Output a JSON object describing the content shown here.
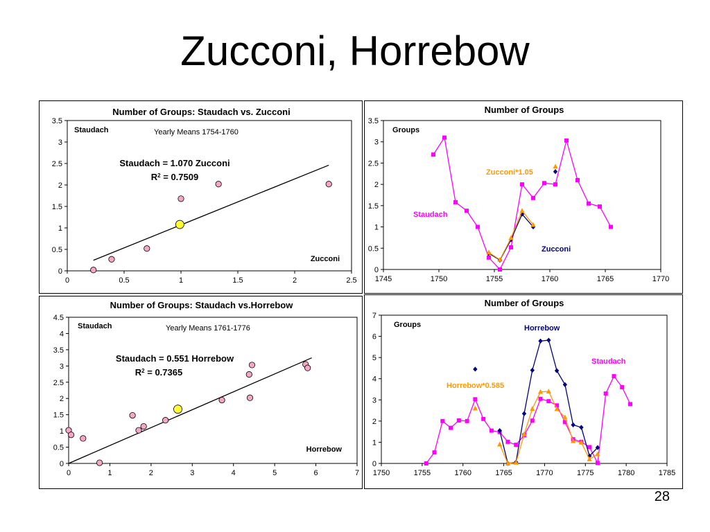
{
  "slide": {
    "title": "Zucconi, Horrebow",
    "page_number": "28"
  },
  "chart_data": [
    {
      "type": "scatter",
      "title": "Number of Groups: Staudach vs. Zucconi",
      "xlim": [
        0,
        2.5
      ],
      "xticks": [
        0,
        0.5,
        1,
        1.5,
        2,
        2.5
      ],
      "xtick_labels": [
        "0",
        "0.5",
        "1",
        "1.5",
        "2",
        "2.5"
      ],
      "ylim": [
        0,
        3.5
      ],
      "yticks": [
        0,
        0.5,
        1,
        1.5,
        2,
        2.5,
        3,
        3.5
      ],
      "ytick_labels": [
        "0",
        "0.5",
        "1",
        "1.5",
        "2",
        "2.5",
        "3",
        "3.5"
      ],
      "grid": false,
      "series": [
        {
          "marker": "circle",
          "color": "#f4a6c6",
          "points": [
            [
              0.23,
              0.02
            ],
            [
              0.39,
              0.27
            ],
            [
              0.7,
              0.52
            ],
            [
              1.0,
              1.68
            ],
            [
              1.33,
              2.02
            ],
            [
              2.3,
              2.02
            ]
          ]
        },
        {
          "marker": "circle",
          "color": "#ffff33",
          "points": [
            [
              0.99,
              1.08
            ]
          ]
        }
      ],
      "fit_line": {
        "slope": 1.07,
        "x_range": [
          0.23,
          2.3
        ]
      },
      "annotations": [
        {
          "id": "ylabel",
          "text": "Staudach",
          "bold": true
        },
        {
          "id": "subtitle",
          "text": "Yearly Means 1754-1760",
          "bold": false
        },
        {
          "id": "equation",
          "text": "Staudach = 1.070 Zucconi",
          "bold": true
        },
        {
          "id": "r2_prefix",
          "text": "R",
          "sup": "2",
          "suffix": " = 0.7509",
          "bold": true
        },
        {
          "id": "xlabel",
          "text": "Zucconi",
          "bold": true
        }
      ]
    },
    {
      "type": "line",
      "title": "Number of Groups",
      "xlim": [
        1745,
        1770
      ],
      "xticks": [
        1745,
        1750,
        1755,
        1760,
        1765,
        1770
      ],
      "xtick_labels": [
        "1745",
        "1750",
        "1755",
        "1760",
        "1765",
        "1770"
      ],
      "ylim": [
        0,
        3.5
      ],
      "yticks": [
        0,
        0.5,
        1,
        1.5,
        2,
        2.5,
        3,
        3.5
      ],
      "ytick_labels": [
        "0",
        "0.5",
        "1",
        "1.5",
        "2",
        "2.5",
        "3",
        "3.5"
      ],
      "grid": false,
      "series": [
        {
          "name": "Staudach",
          "color": "#ff00ff",
          "marker": "square",
          "points": [
            [
              1749.5,
              2.7
            ],
            [
              1750.5,
              3.1
            ],
            [
              1751.5,
              1.58
            ],
            [
              1752.5,
              1.38
            ],
            [
              1753.5,
              1.0
            ],
            [
              1754.5,
              0.28
            ],
            [
              1755.5,
              0.0
            ],
            [
              1756.5,
              0.52
            ],
            [
              1757.5,
              2.0
            ],
            [
              1758.5,
              1.68
            ],
            [
              1759.5,
              2.03
            ],
            [
              1760.5,
              2.0
            ],
            [
              1761.5,
              3.03
            ],
            [
              1762.5,
              2.1
            ],
            [
              1763.5,
              1.55
            ],
            [
              1764.5,
              1.48
            ],
            [
              1765.5,
              1.0
            ]
          ]
        },
        {
          "name": "Zucconi",
          "color": "#000080",
          "marker": "diamond",
          "segments": [
            [
              [
                1754.5,
                0.38
              ],
              [
                1755.5,
                0.22
              ],
              [
                1756.5,
                0.7
              ],
              [
                1757.5,
                1.3
              ],
              [
                1758.5,
                1.0
              ]
            ],
            [
              [
                1760.5,
                2.3
              ]
            ]
          ]
        },
        {
          "name": "Zucconi*1.05",
          "color": "#ff9900",
          "marker": "triangle",
          "segments": [
            [
              [
                1754.5,
                0.4
              ],
              [
                1755.5,
                0.23
              ],
              [
                1756.5,
                0.74
              ],
              [
                1757.5,
                1.38
              ],
              [
                1758.5,
                1.05
              ]
            ],
            [
              [
                1760.5,
                2.42
              ]
            ]
          ]
        }
      ],
      "annotations": [
        {
          "id": "ylabel",
          "text": "Groups",
          "color": "#000000"
        },
        {
          "id": "label_zucconi_scaled",
          "text": "Zucconi*1.05",
          "color": "#ff9900"
        },
        {
          "id": "label_staudach",
          "text": "Staudach",
          "color": "#ff00ff"
        },
        {
          "id": "label_zucconi",
          "text": "Zucconi",
          "color": "#000080"
        }
      ]
    },
    {
      "type": "scatter",
      "title": "Number of Groups: Staudach vs.Horrebow",
      "xlim": [
        0,
        7
      ],
      "xticks": [
        0,
        1,
        2,
        3,
        4,
        5,
        6,
        7
      ],
      "xtick_labels": [
        "0",
        "1",
        "2",
        "3",
        "4",
        "5",
        "6",
        "7"
      ],
      "ylim": [
        0,
        4.5
      ],
      "yticks": [
        0,
        0.5,
        1,
        1.5,
        2,
        2.5,
        3,
        3.5,
        4,
        4.5
      ],
      "ytick_labels": [
        "0",
        "0.5",
        "1",
        "1.5",
        "2",
        "2.5",
        "3",
        "3.5",
        "4",
        "4.5"
      ],
      "grid": false,
      "series": [
        {
          "marker": "circle",
          "color": "#f4a6c6",
          "points": [
            [
              0.0,
              1.02
            ],
            [
              0.06,
              0.88
            ],
            [
              0.35,
              0.77
            ],
            [
              0.75,
              0.02
            ],
            [
              1.55,
              1.48
            ],
            [
              1.7,
              1.02
            ],
            [
              1.82,
              1.14
            ],
            [
              2.35,
              1.33
            ],
            [
              3.72,
              1.95
            ],
            [
              4.38,
              2.74
            ],
            [
              4.4,
              2.02
            ],
            [
              4.45,
              3.03
            ],
            [
              5.75,
              3.05
            ],
            [
              5.8,
              2.94
            ]
          ]
        },
        {
          "marker": "circle",
          "color": "#ffff33",
          "points": [
            [
              2.65,
              1.67
            ]
          ]
        }
      ],
      "fit_line": {
        "slope": 0.551,
        "x_range": [
          0,
          5.9
        ]
      },
      "annotations": [
        {
          "id": "ylabel",
          "text": "Staudach",
          "bold": true
        },
        {
          "id": "subtitle",
          "text": "Yearly Means 1761-1776",
          "bold": false
        },
        {
          "id": "equation",
          "text": "Staudach = 0.551 Horrebow",
          "bold": true
        },
        {
          "id": "r2_prefix",
          "text": "R",
          "sup": "2",
          "suffix": " = 0.7365",
          "bold": true
        },
        {
          "id": "xlabel",
          "text": "Horrebow",
          "bold": true
        }
      ]
    },
    {
      "type": "line",
      "title": "Number of Groups",
      "xlim": [
        1750,
        1785
      ],
      "xticks": [
        1750,
        1755,
        1760,
        1765,
        1770,
        1775,
        1780,
        1785
      ],
      "xtick_labels": [
        "1750",
        "1755",
        "1760",
        "1765",
        "1770",
        "1775",
        "1780",
        "1785"
      ],
      "ylim": [
        0,
        7
      ],
      "yticks": [
        0,
        1,
        2,
        3,
        4,
        5,
        6,
        7
      ],
      "ytick_labels": [
        "0",
        "1",
        "2",
        "3",
        "4",
        "5",
        "6",
        "7"
      ],
      "grid": false,
      "series": [
        {
          "name": "Staudach",
          "color": "#ff00ff",
          "marker": "square",
          "points": [
            [
              1755.5,
              0.0
            ],
            [
              1756.5,
              0.52
            ],
            [
              1757.5,
              2.0
            ],
            [
              1758.5,
              1.68
            ],
            [
              1759.5,
              2.03
            ],
            [
              1760.5,
              2.0
            ],
            [
              1761.5,
              3.03
            ],
            [
              1762.5,
              2.1
            ],
            [
              1763.5,
              1.55
            ],
            [
              1764.5,
              1.48
            ],
            [
              1765.5,
              1.02
            ],
            [
              1766.5,
              0.88
            ],
            [
              1767.5,
              1.33
            ],
            [
              1768.5,
              2.02
            ],
            [
              1769.5,
              3.05
            ],
            [
              1770.5,
              2.94
            ],
            [
              1771.5,
              2.74
            ],
            [
              1772.5,
              1.95
            ],
            [
              1773.5,
              1.14
            ],
            [
              1774.5,
              1.02
            ],
            [
              1775.5,
              0.77
            ],
            [
              1776.5,
              0.02
            ],
            [
              1777.5,
              3.3
            ],
            [
              1778.5,
              4.12
            ],
            [
              1779.5,
              3.6
            ],
            [
              1780.5,
              2.8
            ]
          ]
        },
        {
          "name": "Horrebow",
          "color": "#000080",
          "marker": "diamond",
          "segments": [
            [
              [
                1761.5,
                4.45
              ]
            ],
            [
              [
                1764.5,
                1.55
              ],
              [
                1765.5,
                0.0
              ],
              [
                1766.5,
                0.06
              ],
              [
                1767.5,
                2.35
              ],
              [
                1768.5,
                4.4
              ],
              [
                1769.5,
                5.78
              ],
              [
                1770.5,
                5.82
              ],
              [
                1771.5,
                4.38
              ],
              [
                1772.5,
                3.72
              ],
              [
                1773.5,
                1.82
              ],
              [
                1774.5,
                1.7
              ],
              [
                1775.5,
                0.35
              ],
              [
                1776.5,
                0.75
              ]
            ]
          ]
        },
        {
          "name": "Horrebow*0.585",
          "color": "#ff9900",
          "marker": "triangle",
          "segments": [
            [
              [
                1761.5,
                2.6
              ]
            ],
            [
              [
                1764.5,
                0.9
              ],
              [
                1765.5,
                0.0
              ],
              [
                1766.5,
                0.04
              ],
              [
                1767.5,
                1.38
              ],
              [
                1768.5,
                2.58
              ],
              [
                1769.5,
                3.38
              ],
              [
                1770.5,
                3.4
              ],
              [
                1771.5,
                2.57
              ],
              [
                1772.5,
                2.18
              ],
              [
                1773.5,
                1.06
              ],
              [
                1774.5,
                0.99
              ],
              [
                1775.5,
                0.2
              ],
              [
                1776.5,
                0.44
              ]
            ]
          ]
        }
      ],
      "annotations": [
        {
          "id": "ylabel",
          "text": "Groups",
          "color": "#000000"
        },
        {
          "id": "label_horrebow",
          "text": "Horrebow",
          "color": "#000080"
        },
        {
          "id": "label_staudach",
          "text": "Staudach",
          "color": "#ff00ff"
        },
        {
          "id": "label_horrebow_scaled",
          "text": "Horrebow*0.585",
          "color": "#ff9900"
        }
      ]
    }
  ]
}
